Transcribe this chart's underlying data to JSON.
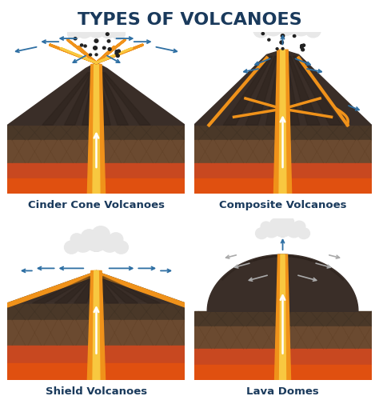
{
  "title": "TYPES OF VOLCANOES",
  "title_color": "#1a3a5c",
  "title_fontsize": 16,
  "background_color": "#ffffff",
  "labels": [
    "Cinder Cone Volcanoes",
    "Composite Volcanoes",
    "Shield Volcanoes",
    "Lava Domes"
  ],
  "label_fontsize": 9.5,
  "label_color": "#1a3a5c",
  "colors": {
    "volcano_dark": "#3a2e28",
    "volcano_stripe": "#2a201a",
    "ground_top": "#4a3828",
    "ground_mid": "#6b4a30",
    "ground_red": "#c84820",
    "ground_magma": "#e05010",
    "lava_orange": "#f0921a",
    "lava_bright": "#f8c840",
    "lava_yellow": "#fde050",
    "arrow_blue": "#2e6fa3",
    "cloud_white": "#e8e8e8",
    "cloud_mid": "#c8c8c8",
    "smoke_dot": "#555555",
    "white": "#ffffff"
  }
}
